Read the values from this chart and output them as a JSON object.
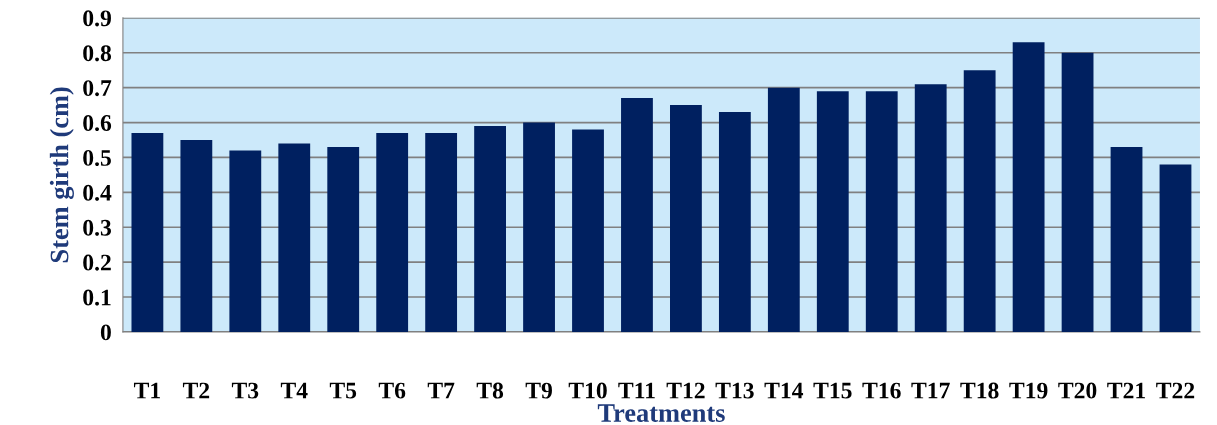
{
  "chart_data": {
    "type": "bar",
    "xlabel": "Treatments",
    "ylabel": "Stem girth (cm)",
    "categories": [
      "T1",
      "T2",
      "T3",
      "T4",
      "T5",
      "T6",
      "T7",
      "T8",
      "T9",
      "T10",
      "T11",
      "T12",
      "T13",
      "T14",
      "T15",
      "T16",
      "T17",
      "T18",
      "T19",
      "T20",
      "T21",
      "T22"
    ],
    "values": [
      0.57,
      0.55,
      0.52,
      0.54,
      0.53,
      0.57,
      0.57,
      0.59,
      0.6,
      0.58,
      0.67,
      0.65,
      0.63,
      0.7,
      0.69,
      0.69,
      0.71,
      0.75,
      0.83,
      0.8,
      0.53,
      0.48
    ],
    "color": "#002060",
    "ylim": [
      0,
      0.9
    ],
    "yticks": [
      0,
      0.1,
      0.2,
      0.3,
      0.4,
      0.5,
      0.6,
      0.7,
      0.8,
      0.9
    ],
    "grid": "y",
    "legend": false
  }
}
